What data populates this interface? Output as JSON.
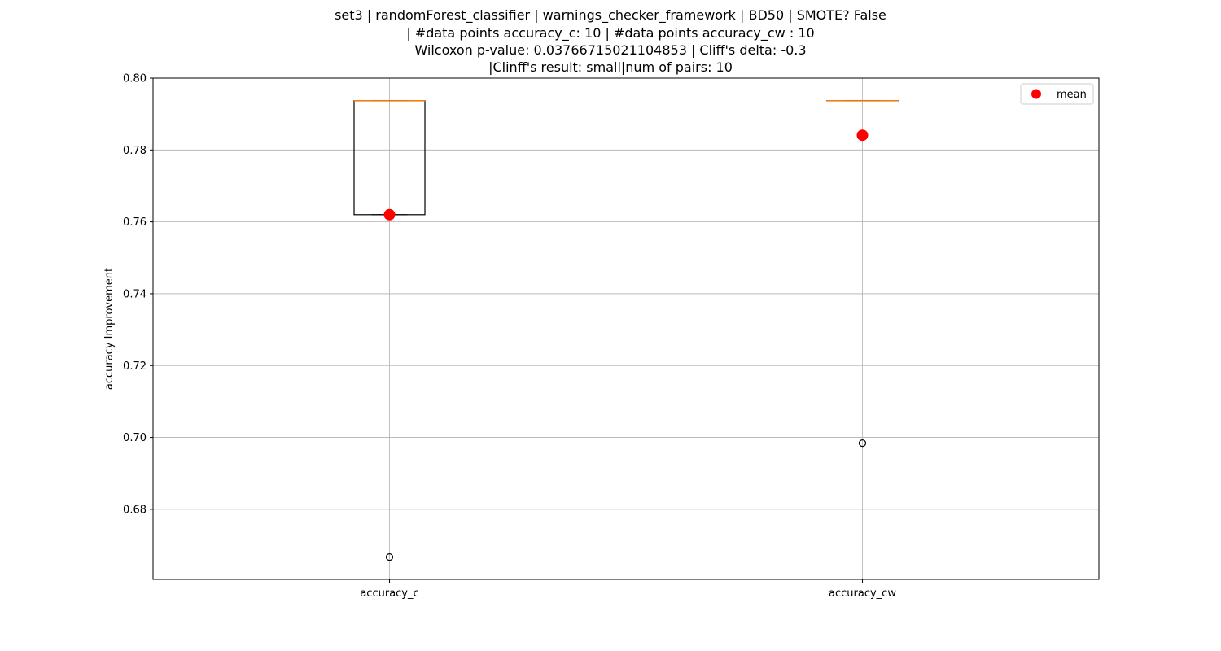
{
  "chart_data": {
    "type": "box",
    "title_lines": [
      "set3 | randomForest_classifier | warnings_checker_framework | BD50 | SMOTE? False",
      "| #data points accuracy_c: 10 | #data points accuracy_cw : 10",
      "Wilcoxon p-value: 0.03766715021104853 | Cliff's delta: -0.3",
      "|Clinff's result: small|num of pairs: 10"
    ],
    "xlabel": "",
    "ylabel": "accuracy Improvement",
    "ylim": [
      0.6605,
      0.8
    ],
    "yticks": [
      0.68,
      0.7,
      0.72,
      0.74,
      0.76,
      0.78,
      0.8
    ],
    "ytick_labels": [
      "0.68",
      "0.70",
      "0.72",
      "0.74",
      "0.76",
      "0.78",
      "0.80"
    ],
    "grid": true,
    "legend": {
      "position": "top-right",
      "entries": [
        "mean"
      ]
    },
    "categories": [
      "accuracy_c",
      "accuracy_cw"
    ],
    "boxes": [
      {
        "name": "accuracy_c",
        "q1": 0.762,
        "median": 0.7937,
        "q3": 0.7937,
        "whisker_low": 0.762,
        "whisker_high": 0.7937,
        "outliers": [
          0.6667
        ],
        "mean": 0.762
      },
      {
        "name": "accuracy_cw",
        "q1": 0.7937,
        "median": 0.7937,
        "q3": 0.7937,
        "whisker_low": 0.7937,
        "whisker_high": 0.7937,
        "outliers": [
          0.6984
        ],
        "mean": 0.7841
      }
    ],
    "colors": {
      "mean": "#ff0000",
      "median": "#ff7f0e",
      "grid": "#b0b0b0",
      "box": "#000000"
    }
  }
}
